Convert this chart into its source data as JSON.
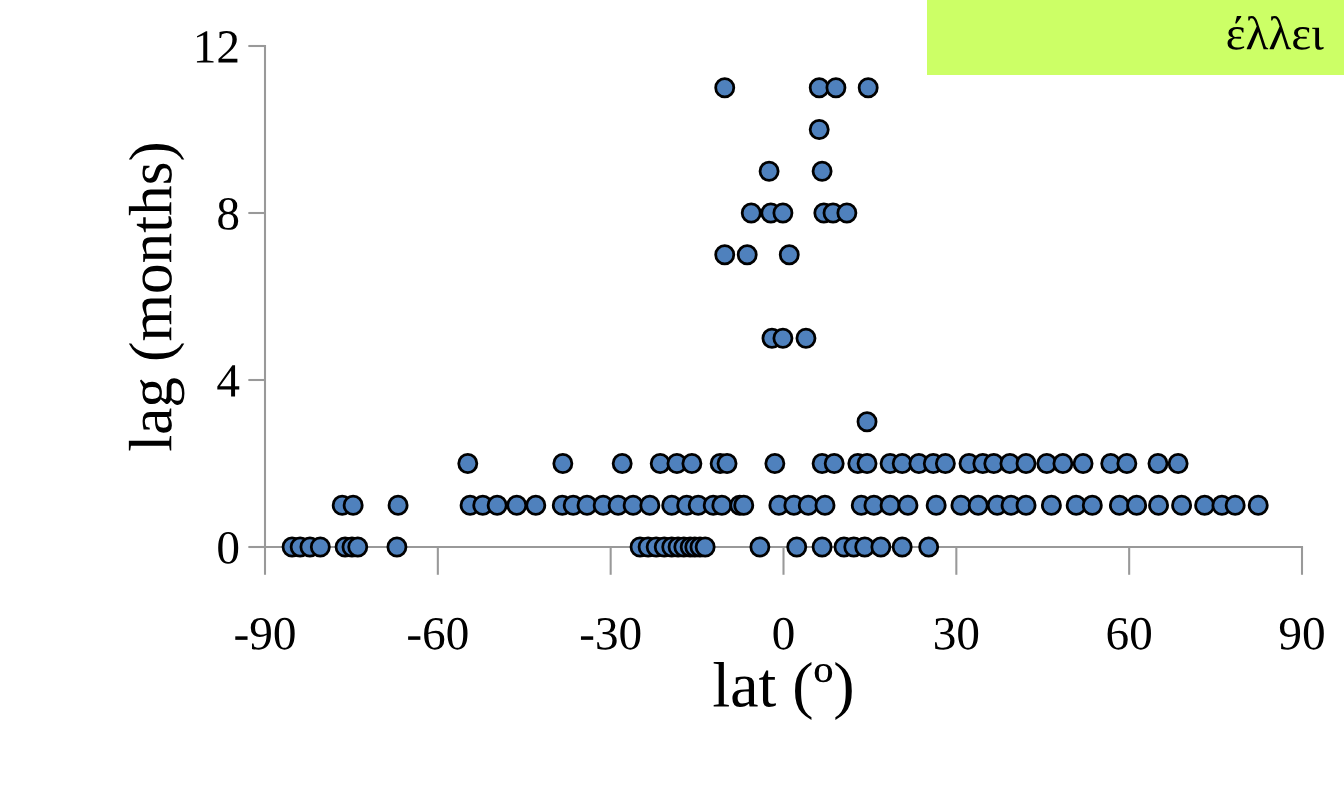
{
  "chart_data": {
    "type": "scatter",
    "xlabel": "lat (º)",
    "ylabel": "lag (months)",
    "annotations": [
      "έλλει"
    ],
    "x": [
      -85.3,
      -83.9,
      -82.2,
      -80.4,
      -76.1,
      -74.9,
      -73.9,
      -67.1,
      -24.9,
      -23.5,
      -22.1,
      -20.7,
      -19.4,
      -18.3,
      -17.3,
      -16.2,
      -15.4,
      -14.5,
      -13.6,
      -4.1,
      2.3,
      6.7,
      10.5,
      12.2,
      14.1,
      16.9,
      20.6,
      25.2,
      -76.6,
      -74.7,
      -66.9,
      -54.4,
      -52.2,
      -49.7,
      -46.3,
      -43.0,
      -38.4,
      -36.5,
      -34.1,
      -31.3,
      -28.7,
      -26.1,
      -23.2,
      -19.4,
      -16.8,
      -14.8,
      -12.2,
      -10.7,
      -7.6,
      -6.9,
      -0.8,
      1.8,
      4.3,
      7.2,
      13.5,
      15.7,
      18.5,
      21.6,
      26.5,
      30.8,
      33.8,
      37.1,
      39.5,
      42.1,
      46.5,
      50.8,
      53.6,
      58.3,
      61.3,
      65.1,
      69.1,
      73.1,
      76.1,
      78.4,
      82.4,
      -54.8,
      -38.3,
      -28.0,
      -21.4,
      -18.5,
      -15.9,
      -11.0,
      -9.8,
      -1.5,
      6.7,
      8.8,
      12.9,
      14.5,
      18.5,
      20.6,
      23.5,
      26.0,
      28.1,
      32.2,
      34.6,
      36.5,
      39.3,
      42.1,
      45.7,
      48.5,
      52.0,
      56.8,
      59.6,
      65.0,
      68.5,
      14.5,
      -2.0,
      -0.1,
      3.9,
      -10.2,
      -6.3,
      1.0,
      -5.6,
      -2.2,
      -0.1,
      7.0,
      8.6,
      11.0,
      -2.5,
      6.7,
      6.2,
      -10.2,
      6.2,
      9.1,
      14.7
    ],
    "values": [
      0,
      0,
      0,
      0,
      0,
      0,
      0,
      0,
      0,
      0,
      0,
      0,
      0,
      0,
      0,
      0,
      0,
      0,
      0,
      0,
      0,
      0,
      0,
      0,
      0,
      0,
      0,
      0,
      1,
      1,
      1,
      1,
      1,
      1,
      1,
      1,
      1,
      1,
      1,
      1,
      1,
      1,
      1,
      1,
      1,
      1,
      1,
      1,
      1,
      1,
      1,
      1,
      1,
      1,
      1,
      1,
      1,
      1,
      1,
      1,
      1,
      1,
      1,
      1,
      1,
      1,
      1,
      1,
      1,
      1,
      1,
      1,
      1,
      1,
      1,
      2,
      2,
      2,
      2,
      2,
      2,
      2,
      2,
      2,
      2,
      2,
      2,
      2,
      2,
      2,
      2,
      2,
      2,
      2,
      2,
      2,
      2,
      2,
      2,
      2,
      2,
      2,
      2,
      2,
      2,
      3,
      5,
      5,
      5,
      7,
      7,
      7,
      8,
      8,
      8,
      8,
      8,
      8,
      9,
      9,
      10,
      11,
      11,
      11,
      11
    ],
    "color": "#4f81bd",
    "marker": "circle",
    "xlim": [
      -90,
      90
    ],
    "xticks": [
      -90,
      -60,
      -30,
      0,
      30,
      60,
      90
    ],
    "ylim": [
      0,
      12
    ],
    "yticks": [
      0,
      4,
      8,
      12
    ],
    "grid": false,
    "legend": false
  }
}
